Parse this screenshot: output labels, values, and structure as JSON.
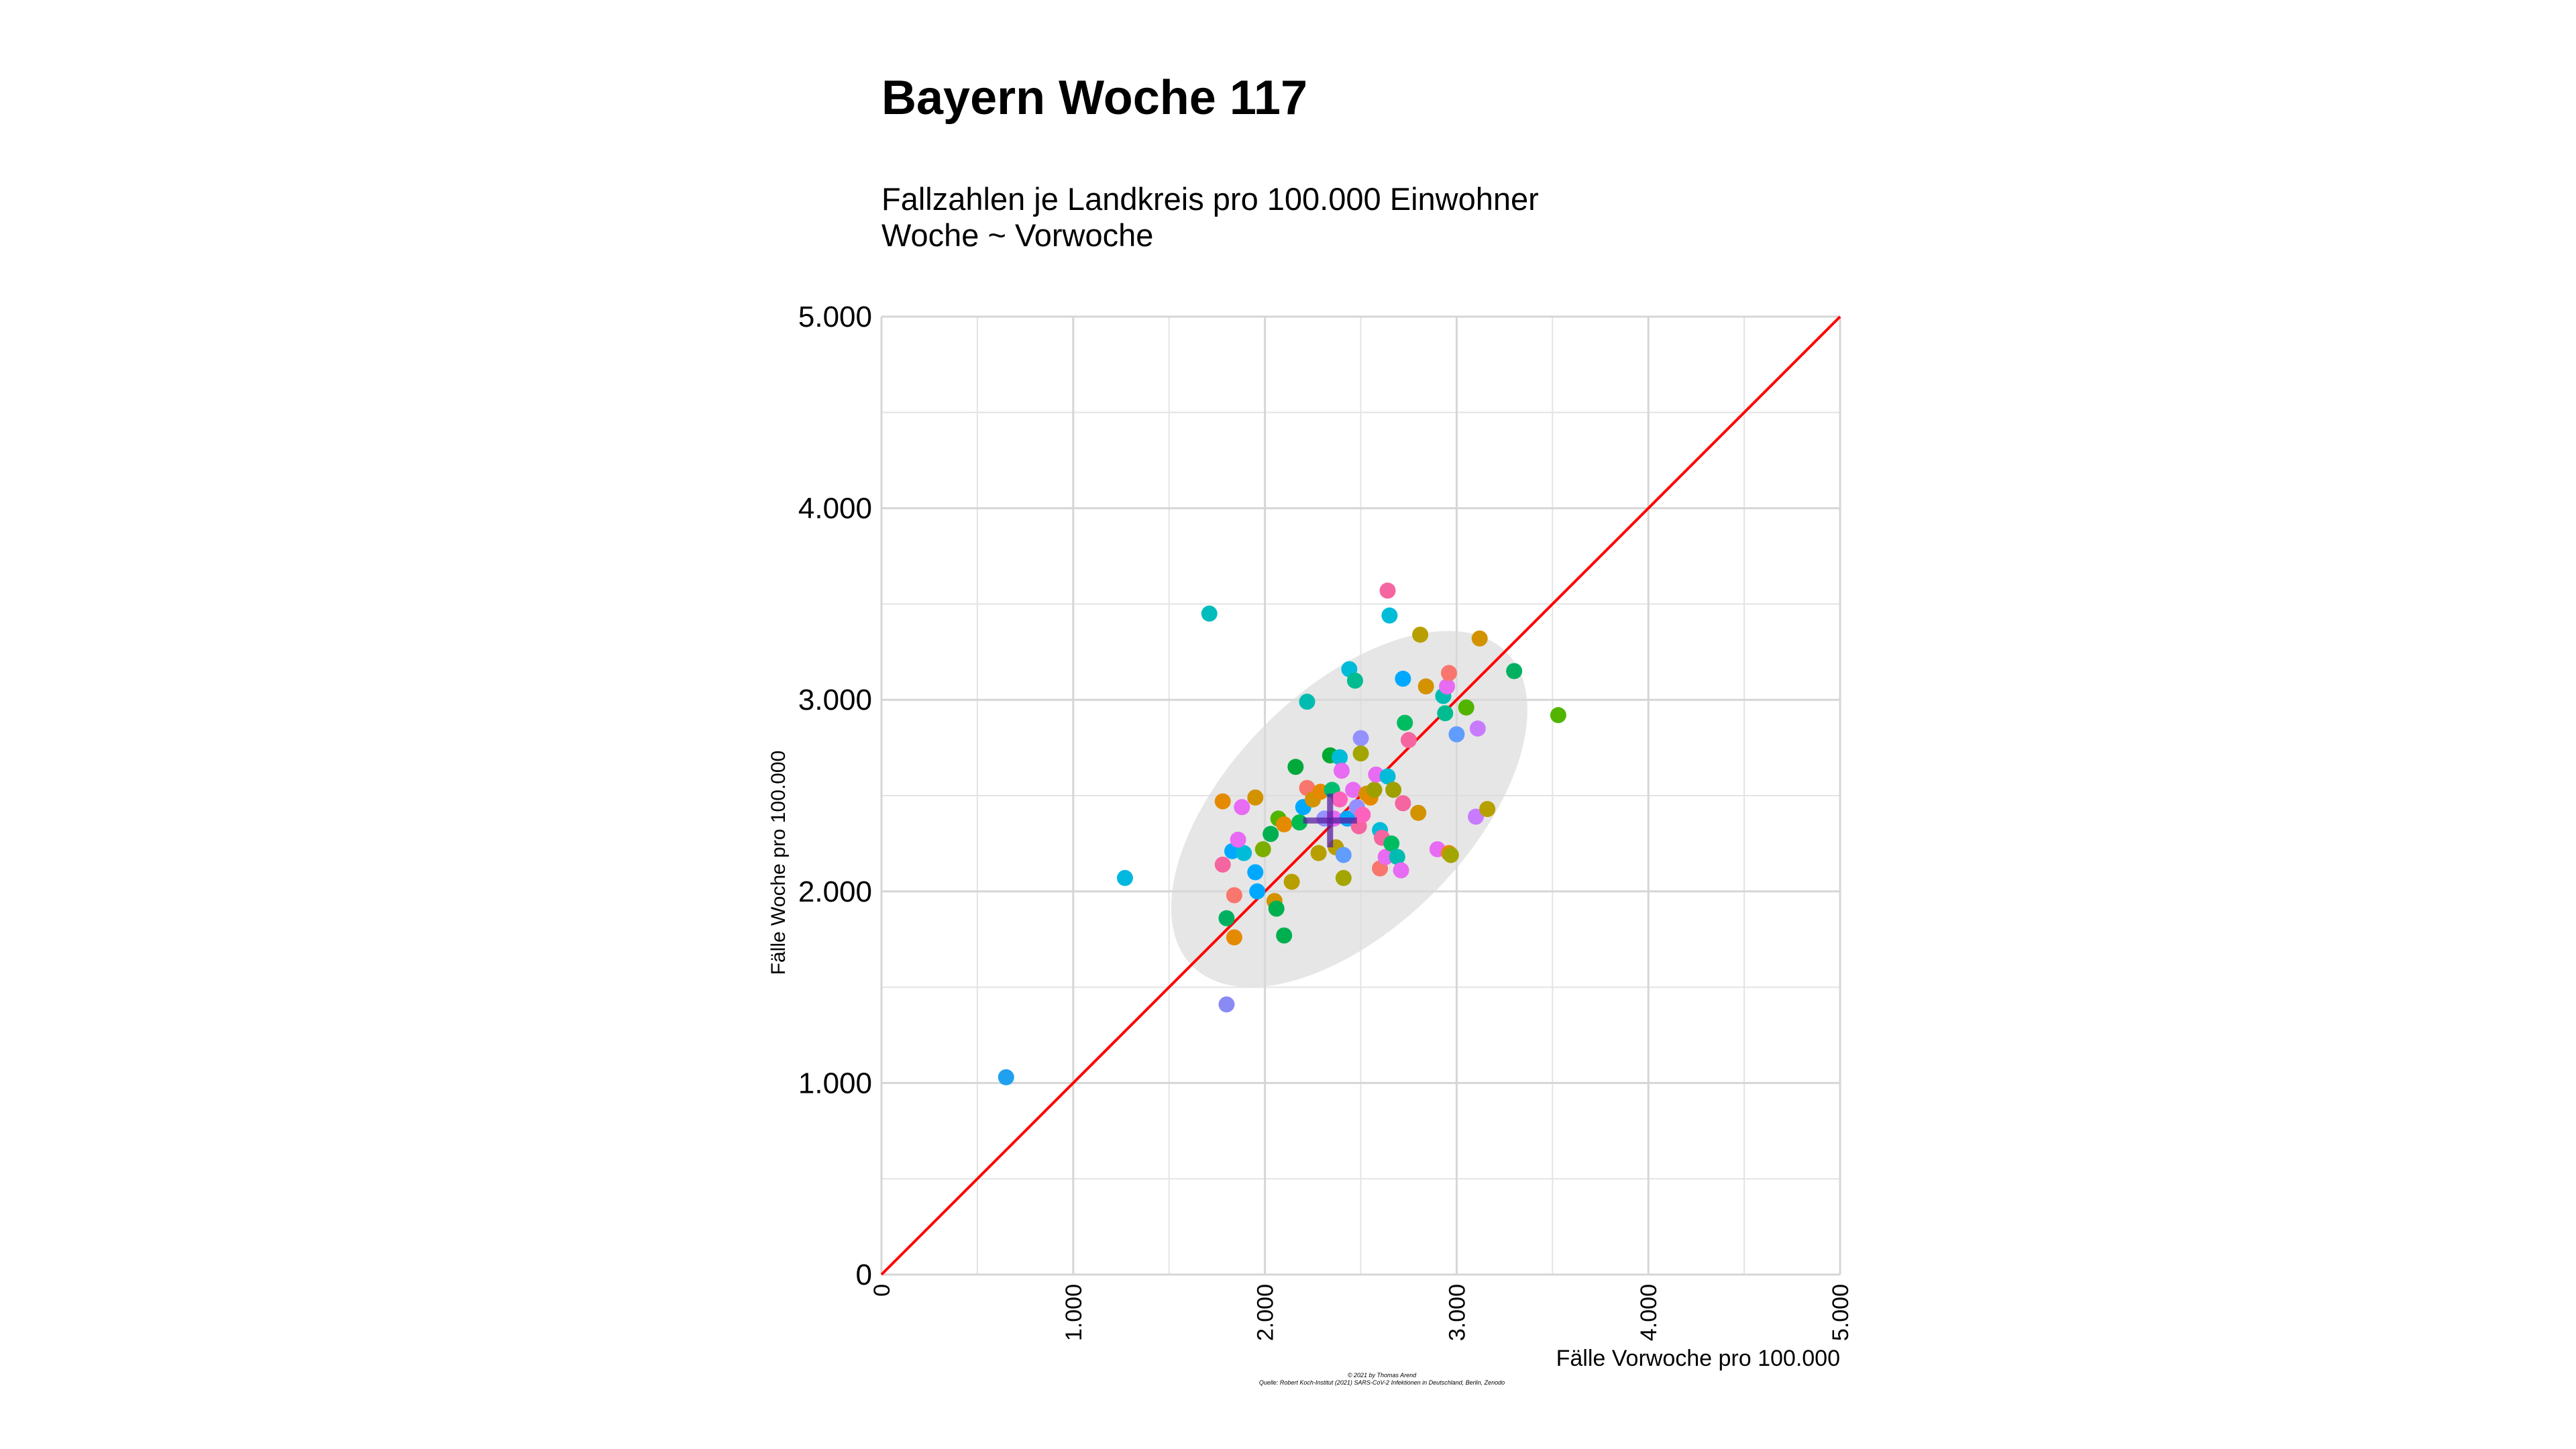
{
  "chart_data": {
    "type": "scatter",
    "title": "Bayern Woche 117",
    "subtitle_lines": [
      "Fallzahlen je Landkreis pro 100.000 Einwohner",
      "Woche ~ Vorwoche"
    ],
    "xlabel": "Fälle Vorwoche pro 100.000",
    "ylabel": "Fälle Woche pro 100.000",
    "xlim": [
      0,
      5000
    ],
    "ylim": [
      0,
      5000
    ],
    "x_ticks": [
      0,
      1000,
      2000,
      3000,
      4000,
      5000
    ],
    "x_tick_labels": [
      "0",
      "1.000",
      "2.000",
      "3.000",
      "4.000",
      "5.000"
    ],
    "y_ticks": [
      0,
      1000,
      2000,
      3000,
      4000,
      5000
    ],
    "y_tick_labels": [
      "0",
      "1.000",
      "2.000",
      "3.000",
      "4.000",
      "5.000"
    ],
    "grid": true,
    "reference_line": {
      "from": [
        0,
        0
      ],
      "to": [
        5000,
        5000
      ],
      "color": "#ff0000"
    },
    "mean": [
      2340,
      2370
    ],
    "ellipse": {
      "center": [
        2440,
        2430
      ],
      "semi_major": 1158,
      "semi_minor": 621,
      "angle_deg": 45
    },
    "points": [
      {
        "x": 650,
        "y": 1030,
        "color": "#1fa1f0"
      },
      {
        "x": 1270,
        "y": 2070,
        "color": "#00b8e0"
      },
      {
        "x": 1710,
        "y": 3450,
        "color": "#00bcbc"
      },
      {
        "x": 1800,
        "y": 1410,
        "color": "#8a8af5"
      },
      {
        "x": 1800,
        "y": 1860,
        "color": "#00b060"
      },
      {
        "x": 1840,
        "y": 1760,
        "color": "#e58a00"
      },
      {
        "x": 1780,
        "y": 2140,
        "color": "#f565a0"
      },
      {
        "x": 1830,
        "y": 2210,
        "color": "#00a9ff"
      },
      {
        "x": 1890,
        "y": 2200,
        "color": "#00bcd8"
      },
      {
        "x": 1950,
        "y": 2100,
        "color": "#00a9ff"
      },
      {
        "x": 1960,
        "y": 2000,
        "color": "#00a9ff"
      },
      {
        "x": 1990,
        "y": 2220,
        "color": "#7cae00"
      },
      {
        "x": 1840,
        "y": 1980,
        "color": "#f8766d"
      },
      {
        "x": 1860,
        "y": 2270,
        "color": "#e76bf3"
      },
      {
        "x": 1880,
        "y": 2440,
        "color": "#e76bf3"
      },
      {
        "x": 1950,
        "y": 2490,
        "color": "#d39200"
      },
      {
        "x": 1780,
        "y": 2470,
        "color": "#e58a00"
      },
      {
        "x": 2030,
        "y": 2300,
        "color": "#00b050"
      },
      {
        "x": 2050,
        "y": 1950,
        "color": "#d39200"
      },
      {
        "x": 2060,
        "y": 1910,
        "color": "#00b050"
      },
      {
        "x": 2070,
        "y": 2380,
        "color": "#53b400"
      },
      {
        "x": 2100,
        "y": 1770,
        "color": "#00b050"
      },
      {
        "x": 2140,
        "y": 2050,
        "color": "#b79f00"
      },
      {
        "x": 2100,
        "y": 2350,
        "color": "#e58a00"
      },
      {
        "x": 2160,
        "y": 2650,
        "color": "#00a93a"
      },
      {
        "x": 2180,
        "y": 2360,
        "color": "#00bc50"
      },
      {
        "x": 2200,
        "y": 2440,
        "color": "#00a9ff"
      },
      {
        "x": 2220,
        "y": 2990,
        "color": "#00bcb0"
      },
      {
        "x": 2220,
        "y": 2540,
        "color": "#f8766d"
      },
      {
        "x": 2250,
        "y": 2480,
        "color": "#d39200"
      },
      {
        "x": 2280,
        "y": 2200,
        "color": "#b79f00"
      },
      {
        "x": 2290,
        "y": 2520,
        "color": "#e58a00"
      },
      {
        "x": 2310,
        "y": 2380,
        "color": "#9590ff"
      },
      {
        "x": 2340,
        "y": 2710,
        "color": "#00a930"
      },
      {
        "x": 2350,
        "y": 2530,
        "color": "#00bc70"
      },
      {
        "x": 2360,
        "y": 2380,
        "color": "#e76bf3"
      },
      {
        "x": 2370,
        "y": 2230,
        "color": "#b79f00"
      },
      {
        "x": 2390,
        "y": 2700,
        "color": "#00bcd8"
      },
      {
        "x": 2390,
        "y": 2480,
        "color": "#ff62bc"
      },
      {
        "x": 2400,
        "y": 2630,
        "color": "#e76bf3"
      },
      {
        "x": 2410,
        "y": 2190,
        "color": "#619cff"
      },
      {
        "x": 2410,
        "y": 2070,
        "color": "#a3a500"
      },
      {
        "x": 2440,
        "y": 3160,
        "color": "#00bcd8"
      },
      {
        "x": 2430,
        "y": 2380,
        "color": "#00a9ff"
      },
      {
        "x": 2460,
        "y": 2530,
        "color": "#e76bf3"
      },
      {
        "x": 2470,
        "y": 3100,
        "color": "#00bc90"
      },
      {
        "x": 2480,
        "y": 2440,
        "color": "#9590ff"
      },
      {
        "x": 2490,
        "y": 2340,
        "color": "#f565a0"
      },
      {
        "x": 2500,
        "y": 2800,
        "color": "#9590ff"
      },
      {
        "x": 2500,
        "y": 2720,
        "color": "#a3a500"
      },
      {
        "x": 2510,
        "y": 2400,
        "color": "#ff62bc"
      },
      {
        "x": 2530,
        "y": 2510,
        "color": "#d39200"
      },
      {
        "x": 2550,
        "y": 2490,
        "color": "#e58a00"
      },
      {
        "x": 2570,
        "y": 2530,
        "color": "#9f9f00"
      },
      {
        "x": 2580,
        "y": 2610,
        "color": "#e76bf3"
      },
      {
        "x": 2600,
        "y": 2320,
        "color": "#00bcd8"
      },
      {
        "x": 2600,
        "y": 2120,
        "color": "#f8766d"
      },
      {
        "x": 2610,
        "y": 2280,
        "color": "#f565a0"
      },
      {
        "x": 2630,
        "y": 2180,
        "color": "#e76bf3"
      },
      {
        "x": 2640,
        "y": 2600,
        "color": "#00bcd8"
      },
      {
        "x": 2640,
        "y": 3570,
        "color": "#f565a0"
      },
      {
        "x": 2650,
        "y": 3440,
        "color": "#00bcd8"
      },
      {
        "x": 2660,
        "y": 2250,
        "color": "#00bc60"
      },
      {
        "x": 2670,
        "y": 2530,
        "color": "#9f9f00"
      },
      {
        "x": 2690,
        "y": 2180,
        "color": "#00bcb0"
      },
      {
        "x": 2710,
        "y": 2110,
        "color": "#e76bf3"
      },
      {
        "x": 2720,
        "y": 2460,
        "color": "#f565a0"
      },
      {
        "x": 2720,
        "y": 3110,
        "color": "#00a9ff"
      },
      {
        "x": 2730,
        "y": 2880,
        "color": "#00bc60"
      },
      {
        "x": 2750,
        "y": 2790,
        "color": "#f565a0"
      },
      {
        "x": 2800,
        "y": 2410,
        "color": "#d39200"
      },
      {
        "x": 2810,
        "y": 3340,
        "color": "#b79f00"
      },
      {
        "x": 2840,
        "y": 3070,
        "color": "#d39200"
      },
      {
        "x": 2900,
        "y": 2220,
        "color": "#e76bf3"
      },
      {
        "x": 2930,
        "y": 3020,
        "color": "#00bcb0"
      },
      {
        "x": 2940,
        "y": 2930,
        "color": "#00bc90"
      },
      {
        "x": 2950,
        "y": 3070,
        "color": "#e76bf3"
      },
      {
        "x": 2960,
        "y": 3140,
        "color": "#f8766d"
      },
      {
        "x": 2960,
        "y": 2200,
        "color": "#e58a00"
      },
      {
        "x": 2970,
        "y": 2190,
        "color": "#a3a500"
      },
      {
        "x": 3000,
        "y": 2820,
        "color": "#619cff"
      },
      {
        "x": 3050,
        "y": 2960,
        "color": "#53b400"
      },
      {
        "x": 3100,
        "y": 2390,
        "color": "#c77cff"
      },
      {
        "x": 3110,
        "y": 2850,
        "color": "#c77cff"
      },
      {
        "x": 3120,
        "y": 3320,
        "color": "#d39200"
      },
      {
        "x": 3160,
        "y": 2430,
        "color": "#b79f00"
      },
      {
        "x": 3300,
        "y": 3150,
        "color": "#00b060"
      },
      {
        "x": 3530,
        "y": 2920,
        "color": "#53b400"
      }
    ]
  },
  "footer": {
    "caption_line1": "© 2021 by Thomas Arend",
    "caption_line2": "Quelle: Robert Koch-Institut (2021) SARS-CoV-2 Infektionen in Deutschland, Berlin, Zenodo"
  }
}
